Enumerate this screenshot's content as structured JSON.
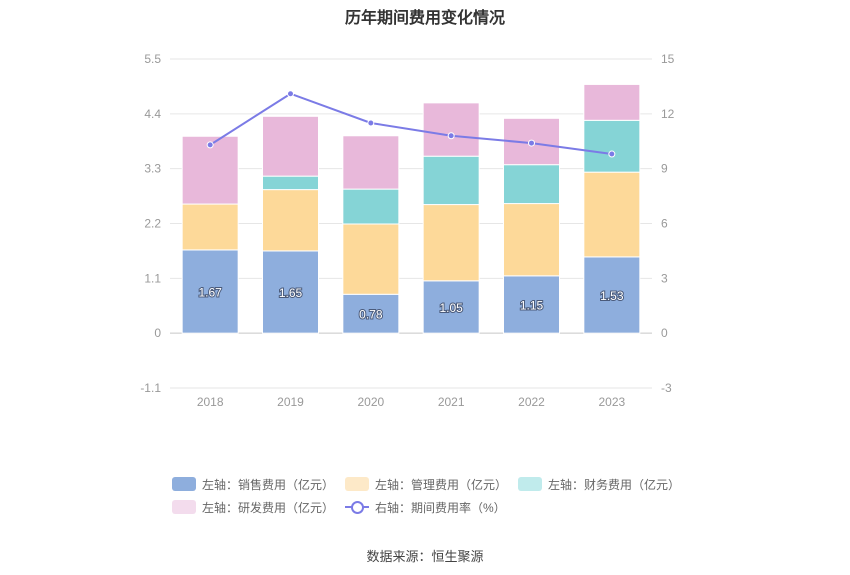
{
  "chart_data": {
    "type": "bar",
    "title": "历年期间费用变化情况",
    "categories": [
      "2018",
      "2019",
      "2020",
      "2021",
      "2022",
      "2023"
    ],
    "left_axis": {
      "ylim": [
        -1.1,
        5.5
      ],
      "ticks": [
        "5.5",
        "4.4",
        "3.3",
        "2.2",
        "1.1",
        "0",
        "-1.1"
      ]
    },
    "right_axis": {
      "ylim": [
        -3,
        15
      ],
      "ticks": [
        "15",
        "12",
        "9",
        "6",
        "3",
        "0",
        "-3"
      ]
    },
    "stacked": true,
    "series": [
      {
        "name": "左轴：销售费用（亿元）",
        "axis": "left",
        "color": "#8eaedd",
        "values": [
          1.67,
          1.65,
          0.78,
          1.05,
          1.15,
          1.53
        ],
        "labels": [
          "1.67",
          "1.65",
          "0.78",
          "1.05",
          "1.15",
          "1.53"
        ]
      },
      {
        "name": "左轴：管理费用（亿元）",
        "axis": "left",
        "color": "#fdd999",
        "values": [
          0.92,
          1.23,
          1.41,
          1.53,
          1.45,
          1.7
        ]
      },
      {
        "name": "左轴：财务费用（亿元）",
        "axis": "left",
        "color": "#85d4d6",
        "values": [
          0.0,
          0.27,
          0.7,
          0.97,
          0.78,
          1.04
        ]
      },
      {
        "name": "左轴：研发费用（亿元）",
        "axis": "left",
        "color": "#e8b8da",
        "values": [
          1.36,
          1.2,
          1.07,
          1.07,
          0.93,
          0.72
        ]
      },
      {
        "name": "右轴：期间费用率（%）",
        "axis": "right",
        "type": "line",
        "color": "#7b7be6",
        "values": [
          10.3,
          13.1,
          11.5,
          10.8,
          10.4,
          9.8
        ]
      }
    ]
  },
  "source": "数据来源：恒生聚源"
}
